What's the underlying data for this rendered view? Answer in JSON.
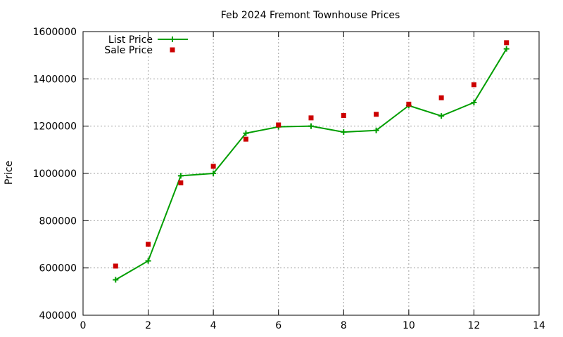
{
  "chart_data": {
    "type": "line",
    "title": "Feb 2024 Fremont Townhouse Prices",
    "xlabel": "",
    "ylabel": "Price",
    "xlim": [
      0,
      14
    ],
    "ylim": [
      400000,
      1600000
    ],
    "x_ticks": [
      0,
      2,
      4,
      6,
      8,
      10,
      12,
      14
    ],
    "y_ticks": [
      400000,
      600000,
      800000,
      1000000,
      1200000,
      1400000,
      1600000
    ],
    "grid": true,
    "legend_position": "top-left",
    "series": [
      {
        "name": "List Price",
        "style": "line-with-plus-markers",
        "color": "#009e00",
        "x": [
          1,
          2,
          3,
          4,
          5,
          6,
          7,
          8,
          9,
          10,
          11,
          12,
          13
        ],
        "y": [
          550000,
          630000,
          990000,
          1000000,
          1170000,
          1197000,
          1200000,
          1175000,
          1182000,
          1287000,
          1243000,
          1300000,
          1527000
        ]
      },
      {
        "name": "Sale Price",
        "style": "square-points",
        "color": "#cc0000",
        "x": [
          1,
          2,
          3,
          4,
          5,
          6,
          7,
          8,
          9,
          10,
          11,
          12,
          13
        ],
        "y": [
          608000,
          700000,
          960000,
          1030000,
          1145000,
          1205000,
          1235000,
          1245000,
          1250000,
          1293000,
          1320000,
          1375000,
          1553000
        ]
      }
    ]
  }
}
